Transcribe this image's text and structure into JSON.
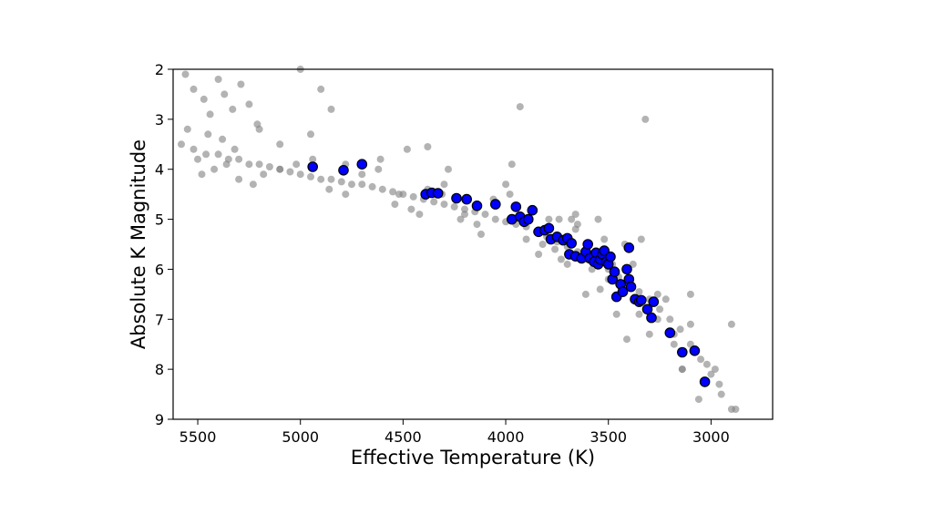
{
  "chart_data": {
    "type": "scatter",
    "title": "",
    "xlabel": "Effective Temperature (K)",
    "ylabel": "Absolute K Magnitude",
    "xlim": [
      5620,
      2700
    ],
    "ylim": [
      9,
      2
    ],
    "x_reversed": true,
    "y_reversed": true,
    "xticks": [
      5500,
      5000,
      4500,
      4000,
      3500,
      3000
    ],
    "yticks": [
      2,
      3,
      4,
      5,
      6,
      7,
      8,
      9
    ],
    "grid": false,
    "legend": "none",
    "colors": {
      "background_points": "#808080",
      "highlight_points": "#0000ff",
      "highlight_edge": "#000000"
    },
    "series": [
      {
        "style": "background",
        "x": [
          5580,
          5520,
          5460,
          5400,
          5350,
          5300,
          5250,
          5200,
          5150,
          5100,
          5050,
          5000,
          4950,
          4900,
          4850,
          4800,
          4750,
          4700,
          4650,
          4600,
          4550,
          4500,
          4450,
          4400,
          4350,
          4300,
          4250,
          4200,
          4150,
          4100,
          4050,
          4000,
          3950,
          3900,
          3850,
          3800,
          3750,
          3700,
          3650,
          3600,
          3550,
          3500,
          3450,
          3400,
          3350,
          3300,
          3250,
          3200,
          3150,
          3100,
          3050,
          3000,
          2950,
          2900,
          5550,
          5450,
          5380,
          5320,
          5500,
          5420,
          5480,
          5360,
          5300,
          5230,
          5180,
          5100,
          5020,
          4940,
          4860,
          4780,
          4700,
          4620,
          4540,
          4460,
          4380,
          4300,
          4220,
          4140,
          4060,
          3980,
          3900,
          3820,
          3740,
          3660,
          3580,
          3500,
          3420,
          3340,
          3260,
          3180,
          3100,
          3020,
          2960,
          5560,
          5520,
          5470,
          5440,
          5400,
          5370,
          5330,
          5290,
          5250,
          5210,
          5000,
          4900,
          4850,
          4950,
          5100,
          5200,
          3930,
          3320,
          4480,
          4610,
          4780,
          4380,
          4280,
          3970,
          3700,
          3650,
          3540,
          3460,
          3380,
          3300,
          3220,
          3140,
          3060,
          2980,
          2900,
          2880,
          3520,
          3600,
          3450,
          3680,
          3760,
          3840,
          4000,
          4120,
          4200,
          4310,
          4420,
          4520,
          3100,
          3140,
          3180,
          3260,
          3350,
          3410,
          3480,
          3550,
          3610,
          3660,
          3730,
          3790,
          3870
        ],
        "y": [
          3.5,
          3.6,
          3.7,
          3.7,
          3.8,
          3.8,
          3.9,
          3.9,
          3.95,
          4.0,
          4.05,
          4.1,
          4.15,
          4.2,
          4.2,
          4.25,
          4.3,
          4.3,
          4.35,
          4.4,
          4.45,
          4.5,
          4.55,
          4.6,
          4.65,
          4.7,
          4.75,
          4.8,
          4.85,
          4.9,
          5.0,
          5.05,
          5.1,
          5.15,
          5.25,
          5.35,
          5.45,
          5.55,
          5.65,
          5.75,
          5.85,
          6.0,
          6.15,
          6.3,
          6.45,
          6.6,
          6.8,
          7.0,
          7.2,
          7.5,
          7.8,
          8.1,
          8.5,
          8.8,
          3.2,
          3.3,
          3.4,
          3.6,
          3.8,
          4.0,
          4.1,
          3.9,
          4.2,
          4.3,
          4.1,
          4.0,
          3.9,
          3.8,
          4.4,
          4.5,
          4.1,
          4.0,
          4.7,
          4.8,
          4.4,
          4.3,
          5.0,
          5.1,
          4.6,
          4.5,
          5.4,
          5.5,
          5.0,
          4.9,
          6.0,
          6.2,
          5.5,
          5.4,
          7.0,
          7.3,
          6.5,
          7.9,
          8.3,
          2.1,
          2.4,
          2.6,
          2.9,
          2.2,
          2.5,
          2.8,
          2.3,
          2.7,
          3.1,
          2.0,
          2.4,
          2.8,
          3.3,
          3.5,
          3.2,
          2.75,
          3.0,
          3.6,
          3.8,
          3.9,
          3.55,
          4.0,
          3.9,
          5.9,
          5.1,
          6.4,
          6.9,
          5.9,
          7.3,
          6.6,
          8.0,
          8.6,
          8.0,
          7.1,
          8.8,
          5.4,
          5.8,
          6.3,
          5.0,
          5.6,
          5.7,
          4.3,
          5.3,
          4.9,
          4.5,
          4.9,
          4.5,
          7.1,
          8.0,
          7.5,
          6.5,
          6.9,
          7.4,
          5.9,
          5.0,
          6.5,
          5.2,
          5.8,
          5.0,
          4.8
        ]
      },
      {
        "style": "highlight",
        "x": [
          4940,
          4790,
          4700,
          4390,
          4360,
          4330,
          4240,
          4190,
          4140,
          4050,
          3970,
          3950,
          3930,
          3910,
          3890,
          3870,
          3840,
          3810,
          3790,
          3780,
          3750,
          3720,
          3700,
          3690,
          3680,
          3660,
          3630,
          3610,
          3600,
          3590,
          3570,
          3560,
          3550,
          3540,
          3530,
          3520,
          3510,
          3500,
          3490,
          3480,
          3470,
          3460,
          3440,
          3430,
          3410,
          3400,
          3400,
          3390,
          3370,
          3350,
          3340,
          3310,
          3290,
          3280,
          3200,
          3140,
          3080,
          3030
        ],
        "y": [
          3.95,
          4.02,
          3.9,
          4.5,
          4.47,
          4.48,
          4.58,
          4.6,
          4.73,
          4.7,
          5.0,
          4.75,
          4.95,
          5.05,
          5.0,
          4.82,
          5.25,
          5.22,
          5.18,
          5.4,
          5.35,
          5.42,
          5.38,
          5.7,
          5.48,
          5.74,
          5.78,
          5.65,
          5.5,
          5.78,
          5.85,
          5.67,
          5.9,
          5.8,
          5.7,
          5.63,
          5.85,
          5.9,
          5.75,
          6.2,
          6.05,
          6.55,
          6.3,
          6.45,
          6.0,
          6.2,
          5.57,
          6.35,
          6.6,
          6.65,
          6.62,
          6.8,
          6.97,
          6.65,
          7.27,
          7.66,
          7.63,
          8.25
        ]
      }
    ]
  }
}
